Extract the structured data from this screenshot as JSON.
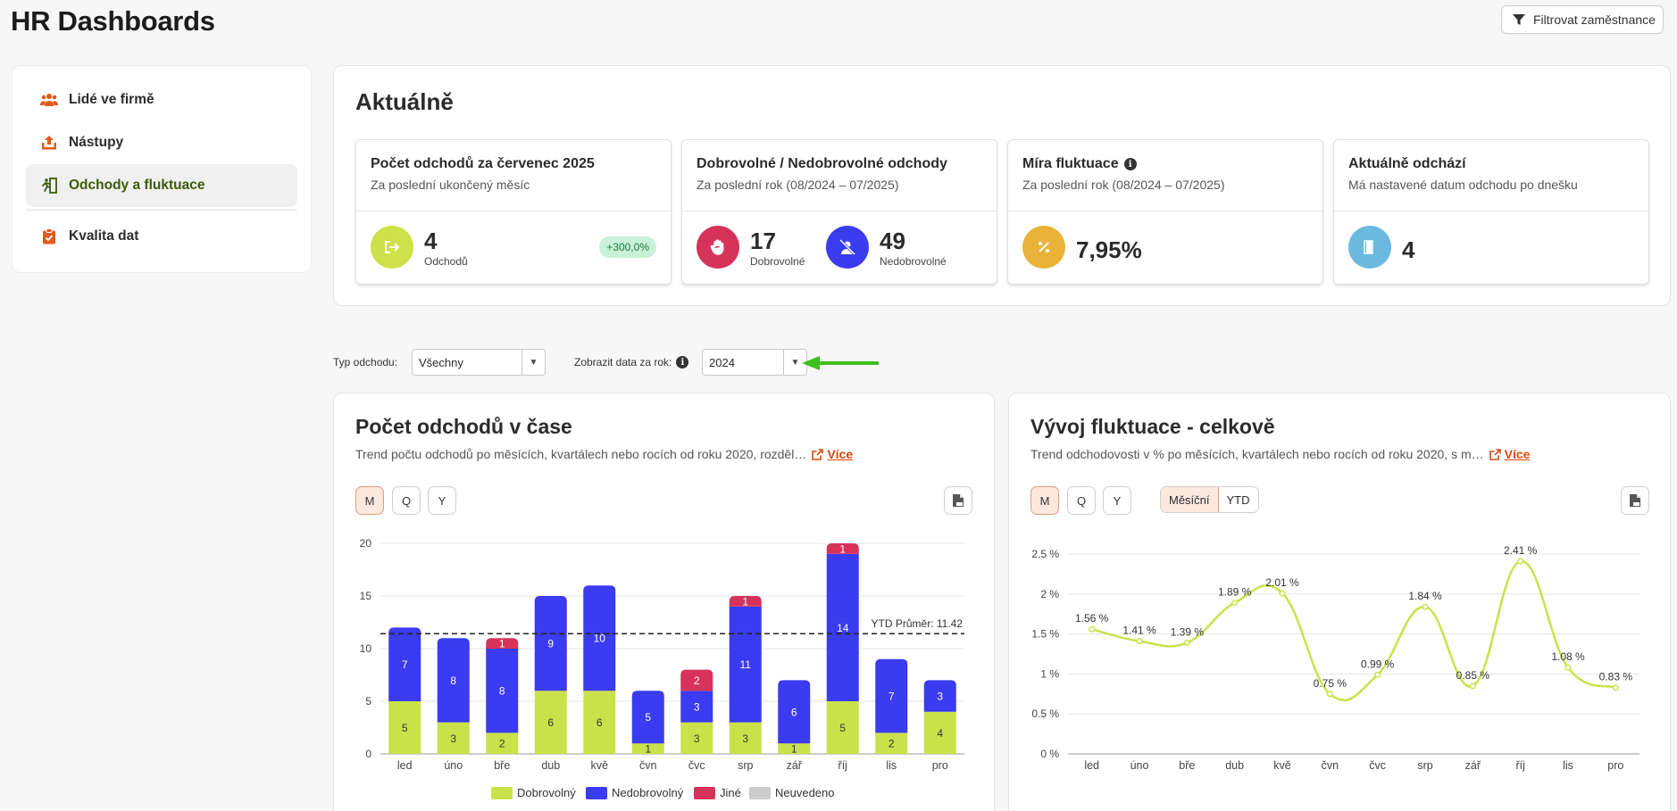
{
  "app": {
    "title": "HR Dashboards",
    "filter_button": "Filtrovat zaměstnance"
  },
  "sidebar": {
    "items": [
      {
        "label": "Lidé ve firmě",
        "icon": "people-icon"
      },
      {
        "label": "Nástupy",
        "icon": "arrivals-icon"
      },
      {
        "label": "Odchody a fluktuace",
        "icon": "exit-run-icon",
        "active": true
      },
      {
        "label": "Kvalita dat",
        "icon": "clipboard-check-icon"
      }
    ]
  },
  "current": {
    "title": "Aktuálně",
    "cards": [
      {
        "title": "Počet odchodů za červenec 2025",
        "subtitle": "Za poslední ukončený měsíc",
        "value": "4",
        "value_label": "Odchodů",
        "badge": "+300,0%",
        "icon_color": "#cde14a"
      },
      {
        "title": "Dobrovolné / Nedobrovolné odchody",
        "subtitle": "Za poslední rok (08/2024 – 07/2025)",
        "value_a": "17",
        "label_a": "Dobrovolné",
        "value_b": "49",
        "label_b": "Nedobrovolné",
        "color_a": "#d6335b",
        "color_b": "#3b3bf0"
      },
      {
        "title": "Míra fluktuace",
        "subtitle": "Za poslední rok (08/2024 – 07/2025)",
        "value": "7,95%",
        "icon_color": "#e9b33a"
      },
      {
        "title": "Aktuálně odchází",
        "subtitle": "Má nastavené datum odchodu po dnešku",
        "value": "4",
        "icon_color": "#6bb9df"
      }
    ]
  },
  "filters": {
    "type_label": "Typ odchodu:",
    "type_value": "Všechny",
    "year_label": "Zobrazit data za rok:",
    "year_value": "2024"
  },
  "left_chart": {
    "title": "Počet odchodů v čase",
    "desc": "Trend počtu odchodů po měsících, kvartálech nebo rocích od roku 2020, rozděl…",
    "more": "Více",
    "periods": [
      "M",
      "Q",
      "Y"
    ],
    "active_period": "M"
  },
  "right_chart": {
    "title": "Vývoj fluktuace - celkově",
    "desc": "Trend odchodovosti v % po měsících, kvartálech nebo rocích od roku 2020, s m…",
    "more": "Více",
    "periods": [
      "M",
      "Q",
      "Y"
    ],
    "active_period": "M",
    "modes": [
      "Měsíční",
      "YTD"
    ],
    "active_mode": "Měsíční"
  },
  "chart_data": [
    {
      "type": "bar",
      "stacked": true,
      "categories": [
        "led",
        "úno",
        "bře",
        "dub",
        "kvě",
        "čvn",
        "čvc",
        "srp",
        "zář",
        "říj",
        "lis",
        "pro"
      ],
      "series": [
        {
          "name": "Dobrovolný",
          "color": "#c9e24a",
          "values": [
            5,
            3,
            2,
            6,
            6,
            1,
            3,
            3,
            1,
            5,
            2,
            4
          ]
        },
        {
          "name": "Nedobrovolný",
          "color": "#3b3bf0",
          "values": [
            7,
            8,
            8,
            9,
            10,
            5,
            3,
            11,
            6,
            14,
            7,
            3
          ]
        },
        {
          "name": "Jiné",
          "color": "#d6335b",
          "values": [
            0,
            0,
            1,
            0,
            0,
            0,
            2,
            1,
            0,
            1,
            0,
            0
          ]
        },
        {
          "name": "Neuvedeno",
          "color": "#cccccc",
          "values": [
            0,
            0,
            0,
            0,
            0,
            0,
            0,
            0,
            0,
            0,
            0,
            0
          ]
        }
      ],
      "ylim": [
        0,
        20
      ],
      "yticks": [
        0,
        5,
        10,
        15,
        20
      ],
      "reference_line": {
        "value": 11.42,
        "label": "YTD Průměr: 11.42"
      },
      "legend": "bottom"
    },
    {
      "type": "line",
      "categories": [
        "led",
        "úno",
        "bře",
        "dub",
        "kvě",
        "čvn",
        "čvc",
        "srp",
        "zář",
        "říj",
        "lis",
        "pro"
      ],
      "series": [
        {
          "color": "#c9e24a",
          "values": [
            1.56,
            1.41,
            1.39,
            1.89,
            2.01,
            0.75,
            0.99,
            1.84,
            0.85,
            2.41,
            1.08,
            0.83
          ]
        }
      ],
      "value_labels": [
        "1.56 %",
        "1.41 %",
        "1.39 %",
        "1.89 %",
        "2.01 %",
        "0.75 %",
        "0.99 %",
        "1.84 %",
        "0.85 %",
        "2.41 %",
        "1.08 %",
        "0.83 %"
      ],
      "ylim": [
        0,
        2.5
      ],
      "yticks": [
        "0 %",
        "0.5 %",
        "1 %",
        "1.5 %",
        "2 %",
        "2.5 %"
      ]
    }
  ]
}
